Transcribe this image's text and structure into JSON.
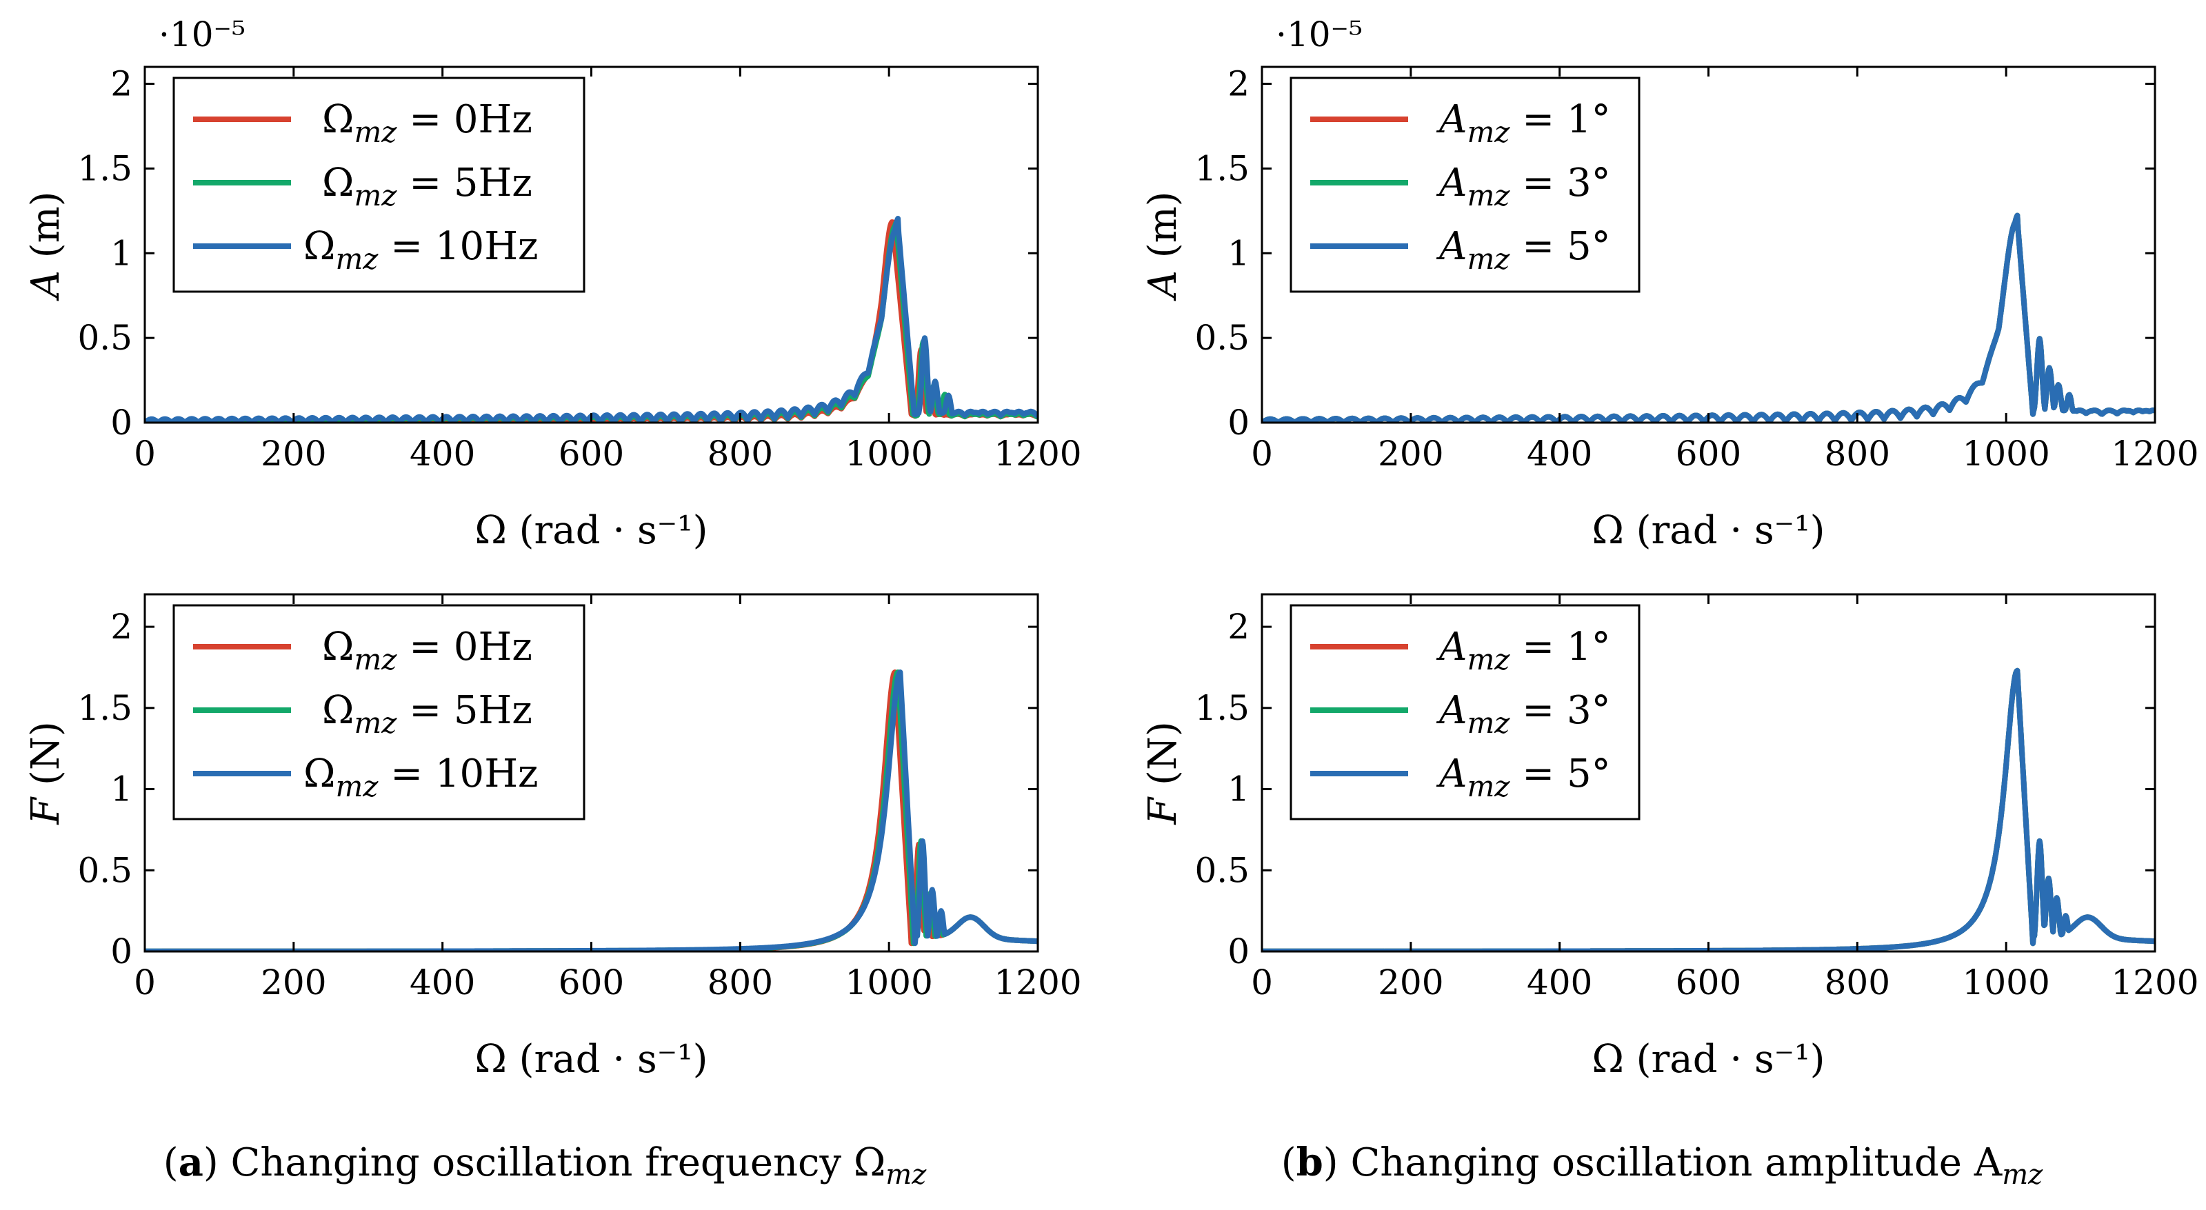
{
  "colors": {
    "red": "#d7422f",
    "green": "#13a86a",
    "blue": "#2a6db3",
    "axis": "#000000"
  },
  "captions": [
    {
      "label": "a",
      "text": "Changing oscillation frequency Ω",
      "sub": "mz"
    },
    {
      "label": "b",
      "text": "Changing oscillation amplitude A",
      "sub": "mz"
    }
  ],
  "chart_data": [
    {
      "id": "a-top",
      "type": "line",
      "title": "",
      "xlabel": "Ω (rad · s⁻¹)",
      "ylabel": "A (m)",
      "multiplier": "·10⁻⁵",
      "xlim": [
        0,
        1200
      ],
      "ylim": [
        0,
        2.1
      ],
      "xticks": [
        0,
        200,
        400,
        600,
        800,
        1000,
        1200
      ],
      "yticks": [
        0,
        0.5,
        1,
        1.5,
        2
      ],
      "ytick_labels": [
        "0",
        "0.5",
        "1",
        "1.5",
        "2"
      ],
      "legend_position": "top-left",
      "series": [
        {
          "name": "Ω_mz = 0Hz",
          "legend": "Ω",
          "sub": "mz",
          "rhs": " = 0Hz",
          "color": "red",
          "peak_x": 1005,
          "peak_y": 1.17,
          "width": 18,
          "ripple_amp": 0.01,
          "ripple_period": 18,
          "secondary": [
            [
              1043,
              0.42
            ],
            [
              1056,
              0.16
            ]
          ],
          "tail": 0.05,
          "cutoff": 1030
        },
        {
          "name": "Ω_mz = 5Hz",
          "legend": "Ω",
          "sub": "mz",
          "rhs": " = 5Hz",
          "color": "green",
          "peak_x": 1010,
          "peak_y": 1.17,
          "width": 20,
          "ripple_amp": 0.015,
          "ripple_period": 18,
          "secondary": [
            [
              1046,
              0.46
            ],
            [
              1060,
              0.2
            ],
            [
              1075,
              0.15
            ]
          ],
          "tail": 0.05,
          "cutoff": 1032
        },
        {
          "name": "Ω_mz = 10Hz",
          "legend": "Ω",
          "sub": "mz",
          "rhs": " = 10Hz",
          "color": "blue",
          "peak_x": 1012,
          "peak_y": 1.17,
          "width": 22,
          "ripple_amp": 0.02,
          "ripple_period": 18,
          "secondary": [
            [
              1048,
              0.48
            ],
            [
              1062,
              0.22
            ],
            [
              1080,
              0.14
            ]
          ],
          "tail": 0.06,
          "cutoff": 1034
        }
      ]
    },
    {
      "id": "b-top",
      "type": "line",
      "title": "",
      "xlabel": "Ω (rad · s⁻¹)",
      "ylabel": "A (m)",
      "multiplier": "·10⁻⁵",
      "xlim": [
        0,
        1200
      ],
      "ylim": [
        0,
        2.1
      ],
      "xticks": [
        0,
        200,
        400,
        600,
        800,
        1000,
        1200
      ],
      "yticks": [
        0,
        0.5,
        1,
        1.5,
        2
      ],
      "ytick_labels": [
        "0",
        "0.5",
        "1",
        "1.5",
        "2"
      ],
      "legend_position": "top-left",
      "series": [
        {
          "name": "A_mz = 1°",
          "legend": "A",
          "sub": "mz",
          "rhs": " = 1°",
          "color": "red",
          "peak_x": 1015,
          "peak_y": 1.2,
          "width": 22,
          "ripple_amp": 0.02,
          "ripple_period": 22,
          "secondary": [
            [
              1045,
              0.48
            ],
            [
              1058,
              0.3
            ],
            [
              1070,
              0.22
            ],
            [
              1085,
              0.15
            ]
          ],
          "tail": 0.07,
          "cutoff": 1036
        },
        {
          "name": "A_mz = 3°",
          "legend": "A",
          "sub": "mz",
          "rhs": " = 3°",
          "color": "green",
          "peak_x": 1015,
          "peak_y": 1.2,
          "width": 22,
          "ripple_amp": 0.02,
          "ripple_period": 22,
          "secondary": [
            [
              1045,
              0.48
            ],
            [
              1058,
              0.3
            ],
            [
              1070,
              0.22
            ],
            [
              1085,
              0.15
            ]
          ],
          "tail": 0.07,
          "cutoff": 1036
        },
        {
          "name": "A_mz = 5°",
          "legend": "A",
          "sub": "mz",
          "rhs": " = 5°",
          "color": "blue",
          "peak_x": 1015,
          "peak_y": 1.2,
          "width": 22,
          "ripple_amp": 0.02,
          "ripple_period": 22,
          "secondary": [
            [
              1045,
              0.48
            ],
            [
              1058,
              0.3
            ],
            [
              1070,
              0.22
            ],
            [
              1085,
              0.15
            ]
          ],
          "tail": 0.07,
          "cutoff": 1036
        }
      ]
    },
    {
      "id": "a-bottom",
      "type": "line",
      "title": "",
      "xlabel": "Ω (rad · s⁻¹)",
      "ylabel": "F (N)",
      "multiplier": "",
      "xlim": [
        0,
        1200
      ],
      "ylim": [
        0,
        2.2
      ],
      "xticks": [
        0,
        200,
        400,
        600,
        800,
        1000,
        1200
      ],
      "yticks": [
        0,
        0.5,
        1,
        1.5,
        2
      ],
      "ytick_labels": [
        "0",
        "0.5",
        "1",
        "1.5",
        "2"
      ],
      "legend_position": "top-left",
      "series": [
        {
          "name": "Ω_mz = 0Hz",
          "legend": "Ω",
          "sub": "mz",
          "rhs": " = 0Hz",
          "color": "red",
          "peak_x": 1008,
          "peak_y": 1.72,
          "width": 18,
          "ripple_amp": 0.0,
          "ripple_period": 20,
          "secondary": [
            [
              1040,
              0.66
            ],
            [
              1052,
              0.35
            ],
            [
              1064,
              0.2
            ]
          ],
          "tail": 0.07,
          "cutoff": 1030
        },
        {
          "name": "Ω_mz = 5Hz",
          "legend": "Ω",
          "sub": "mz",
          "rhs": " = 5Hz",
          "color": "green",
          "peak_x": 1012,
          "peak_y": 1.72,
          "width": 19,
          "ripple_amp": 0.0,
          "ripple_period": 20,
          "secondary": [
            [
              1043,
              0.68
            ],
            [
              1056,
              0.36
            ],
            [
              1068,
              0.22
            ]
          ],
          "tail": 0.07,
          "cutoff": 1033
        },
        {
          "name": "Ω_mz = 10Hz",
          "legend": "Ω",
          "sub": "mz",
          "rhs": " = 10Hz",
          "color": "blue",
          "peak_x": 1015,
          "peak_y": 1.72,
          "width": 20,
          "ripple_amp": 0.0,
          "ripple_period": 20,
          "secondary": [
            [
              1045,
              0.68
            ],
            [
              1058,
              0.38
            ],
            [
              1070,
              0.25
            ],
            [
              1085,
              0.12
            ]
          ],
          "tail": 0.07,
          "cutoff": 1035
        }
      ]
    },
    {
      "id": "b-bottom",
      "type": "line",
      "title": "",
      "xlabel": "Ω (rad · s⁻¹)",
      "ylabel": "F (N)",
      "multiplier": "",
      "xlim": [
        0,
        1200
      ],
      "ylim": [
        0,
        2.2
      ],
      "xticks": [
        0,
        200,
        400,
        600,
        800,
        1000,
        1200
      ],
      "yticks": [
        0,
        0.5,
        1,
        1.5,
        2
      ],
      "ytick_labels": [
        "0",
        "0.5",
        "1",
        "1.5",
        "2"
      ],
      "legend_position": "top-left",
      "series": [
        {
          "name": "A_mz = 1°",
          "legend": "A",
          "sub": "mz",
          "rhs": " = 1°",
          "color": "red",
          "peak_x": 1015,
          "peak_y": 1.73,
          "width": 20,
          "ripple_amp": 0.0,
          "ripple_period": 20,
          "secondary": [
            [
              1045,
              0.68
            ],
            [
              1057,
              0.45
            ],
            [
              1068,
              0.33
            ],
            [
              1080,
              0.22
            ]
          ],
          "tail": 0.07,
          "cutoff": 1036
        },
        {
          "name": "A_mz = 3°",
          "legend": "A",
          "sub": "mz",
          "rhs": " = 3°",
          "color": "green",
          "peak_x": 1015,
          "peak_y": 1.73,
          "width": 20,
          "ripple_amp": 0.0,
          "ripple_period": 20,
          "secondary": [
            [
              1045,
              0.68
            ],
            [
              1057,
              0.45
            ],
            [
              1068,
              0.33
            ],
            [
              1080,
              0.22
            ]
          ],
          "tail": 0.07,
          "cutoff": 1036
        },
        {
          "name": "A_mz = 5°",
          "legend": "A",
          "sub": "mz",
          "rhs": " = 5°",
          "color": "blue",
          "peak_x": 1015,
          "peak_y": 1.73,
          "width": 20,
          "ripple_amp": 0.0,
          "ripple_period": 20,
          "secondary": [
            [
              1045,
              0.68
            ],
            [
              1057,
              0.45
            ],
            [
              1068,
              0.33
            ],
            [
              1080,
              0.22
            ]
          ],
          "tail": 0.07,
          "cutoff": 1036
        }
      ]
    }
  ]
}
